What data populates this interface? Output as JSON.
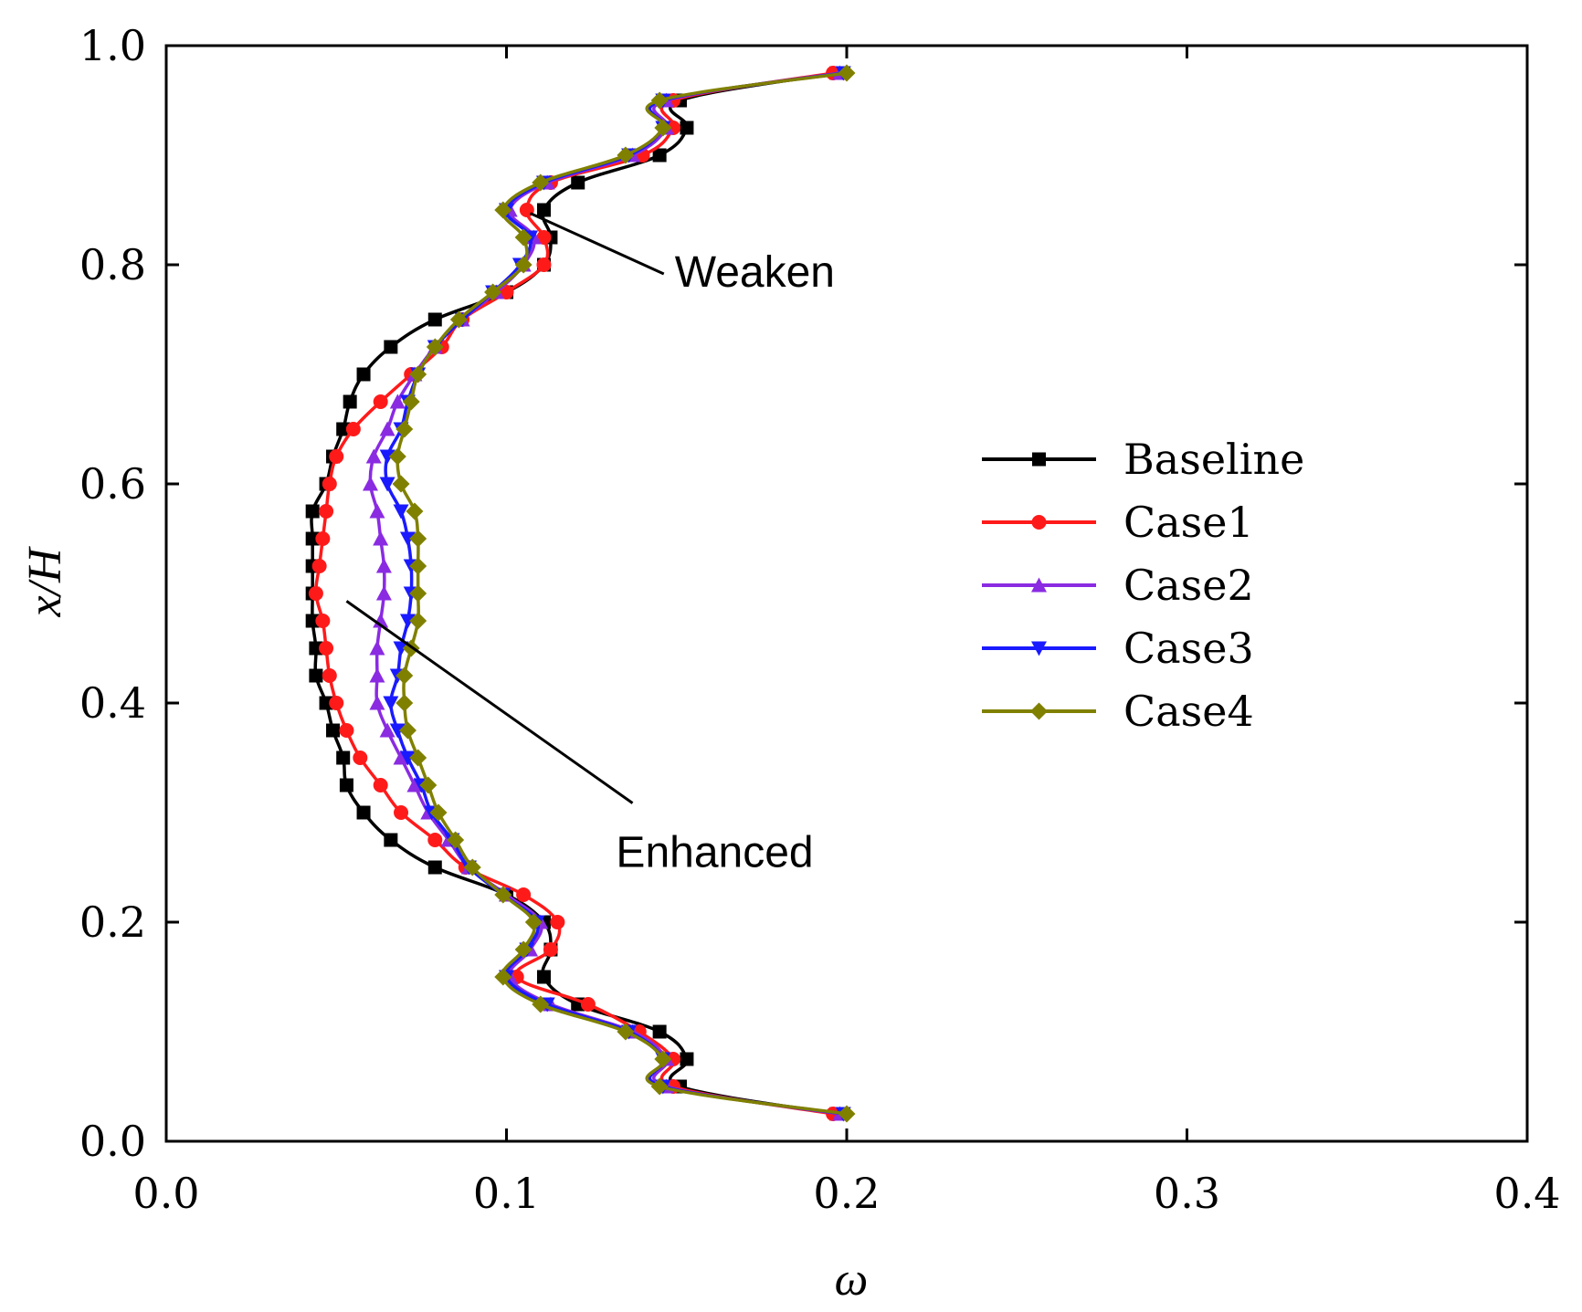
{
  "chart_data": {
    "type": "line",
    "title": "",
    "xlabel": "ω",
    "ylabel": "x/H",
    "xlim": [
      0.0,
      0.4
    ],
    "ylim": [
      0.0,
      1.0
    ],
    "xticks": [
      "0.0",
      "0.1",
      "0.2",
      "0.3",
      "0.4"
    ],
    "yticks": [
      "0.0",
      "0.2",
      "0.4",
      "0.6",
      "0.8",
      "1.0"
    ],
    "xtick_values": [
      0.0,
      0.1,
      0.2,
      0.3,
      0.4
    ],
    "ytick_values": [
      0.0,
      0.2,
      0.4,
      0.6,
      0.8,
      1.0
    ],
    "grid": false,
    "legend_position": "right-center",
    "y": [
      0.025,
      0.05,
      0.075,
      0.1,
      0.125,
      0.15,
      0.175,
      0.2,
      0.225,
      0.25,
      0.275,
      0.3,
      0.325,
      0.35,
      0.375,
      0.4,
      0.425,
      0.45,
      0.475,
      0.5,
      0.525,
      0.55,
      0.575,
      0.6,
      0.625,
      0.65,
      0.675,
      0.7,
      0.725,
      0.75,
      0.775,
      0.8,
      0.825,
      0.85,
      0.875,
      0.9,
      0.925,
      0.95,
      0.975
    ],
    "series": [
      {
        "name": "Baseline",
        "color": "#000000",
        "marker": "square",
        "values": [
          0.197,
          0.151,
          0.153,
          0.145,
          0.121,
          0.111,
          0.113,
          0.111,
          0.1,
          0.079,
          0.066,
          0.058,
          0.053,
          0.052,
          0.049,
          0.047,
          0.044,
          0.044,
          0.043,
          0.043,
          0.043,
          0.043,
          0.043,
          0.047,
          0.049,
          0.052,
          0.054,
          0.058,
          0.066,
          0.079,
          0.1,
          0.111,
          0.113,
          0.111,
          0.121,
          0.145,
          0.153,
          0.151,
          0.197
        ]
      },
      {
        "name": "Case1",
        "color": "#ff1a1a",
        "marker": "circle",
        "values": [
          0.196,
          0.149,
          0.149,
          0.139,
          0.124,
          0.103,
          0.113,
          0.115,
          0.105,
          0.088,
          0.079,
          0.069,
          0.063,
          0.057,
          0.053,
          0.05,
          0.048,
          0.047,
          0.046,
          0.044,
          0.045,
          0.046,
          0.047,
          0.048,
          0.05,
          0.055,
          0.063,
          0.072,
          0.081,
          0.087,
          0.1,
          0.111,
          0.111,
          0.106,
          0.113,
          0.14,
          0.149,
          0.149,
          0.196
        ]
      },
      {
        "name": "Case2",
        "color": "#8a2be2",
        "marker": "triangle-up",
        "values": [
          0.198,
          0.147,
          0.147,
          0.137,
          0.113,
          0.101,
          0.107,
          0.11,
          0.1,
          0.089,
          0.083,
          0.077,
          0.073,
          0.069,
          0.065,
          0.062,
          0.062,
          0.062,
          0.063,
          0.064,
          0.064,
          0.063,
          0.062,
          0.06,
          0.061,
          0.065,
          0.068,
          0.073,
          0.079,
          0.087,
          0.097,
          0.105,
          0.108,
          0.101,
          0.112,
          0.137,
          0.147,
          0.147,
          0.198
        ]
      },
      {
        "name": "Case3",
        "color": "#1a1aff",
        "marker": "triangle-down",
        "values": [
          0.199,
          0.146,
          0.146,
          0.136,
          0.112,
          0.1,
          0.106,
          0.109,
          0.099,
          0.089,
          0.084,
          0.078,
          0.075,
          0.071,
          0.068,
          0.066,
          0.068,
          0.069,
          0.071,
          0.072,
          0.072,
          0.071,
          0.069,
          0.065,
          0.065,
          0.069,
          0.071,
          0.074,
          0.079,
          0.087,
          0.096,
          0.104,
          0.107,
          0.1,
          0.111,
          0.136,
          0.146,
          0.146,
          0.199
        ]
      },
      {
        "name": "Case4",
        "color": "#808000",
        "marker": "diamond",
        "values": [
          0.2,
          0.145,
          0.146,
          0.135,
          0.11,
          0.099,
          0.105,
          0.108,
          0.099,
          0.09,
          0.085,
          0.08,
          0.077,
          0.074,
          0.071,
          0.07,
          0.07,
          0.072,
          0.074,
          0.074,
          0.074,
          0.074,
          0.073,
          0.069,
          0.068,
          0.07,
          0.072,
          0.074,
          0.079,
          0.086,
          0.096,
          0.105,
          0.105,
          0.099,
          0.11,
          0.135,
          0.146,
          0.145,
          0.2
        ]
      }
    ],
    "annotations": [
      {
        "text": "Weaken",
        "point": [
          0.107,
          0.847
        ],
        "label_anchor": [
          0.15,
          0.8
        ]
      },
      {
        "text": "Enhanced",
        "point": [
          0.053,
          0.493
        ],
        "label_anchor": [
          0.129,
          0.292
        ]
      }
    ]
  }
}
